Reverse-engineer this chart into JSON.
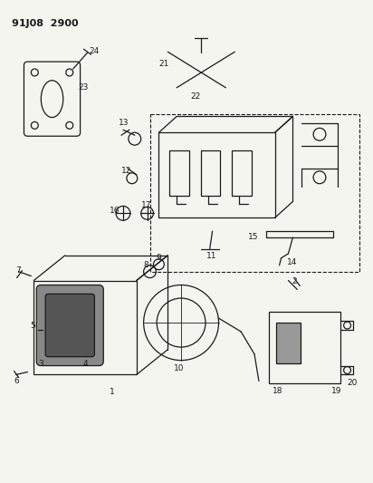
{
  "title": "91J08  2900",
  "bg_color": "#f5f5f0",
  "line_color": "#1a1a1a",
  "fig_width": 4.12,
  "fig_height": 5.33,
  "dpi": 100
}
